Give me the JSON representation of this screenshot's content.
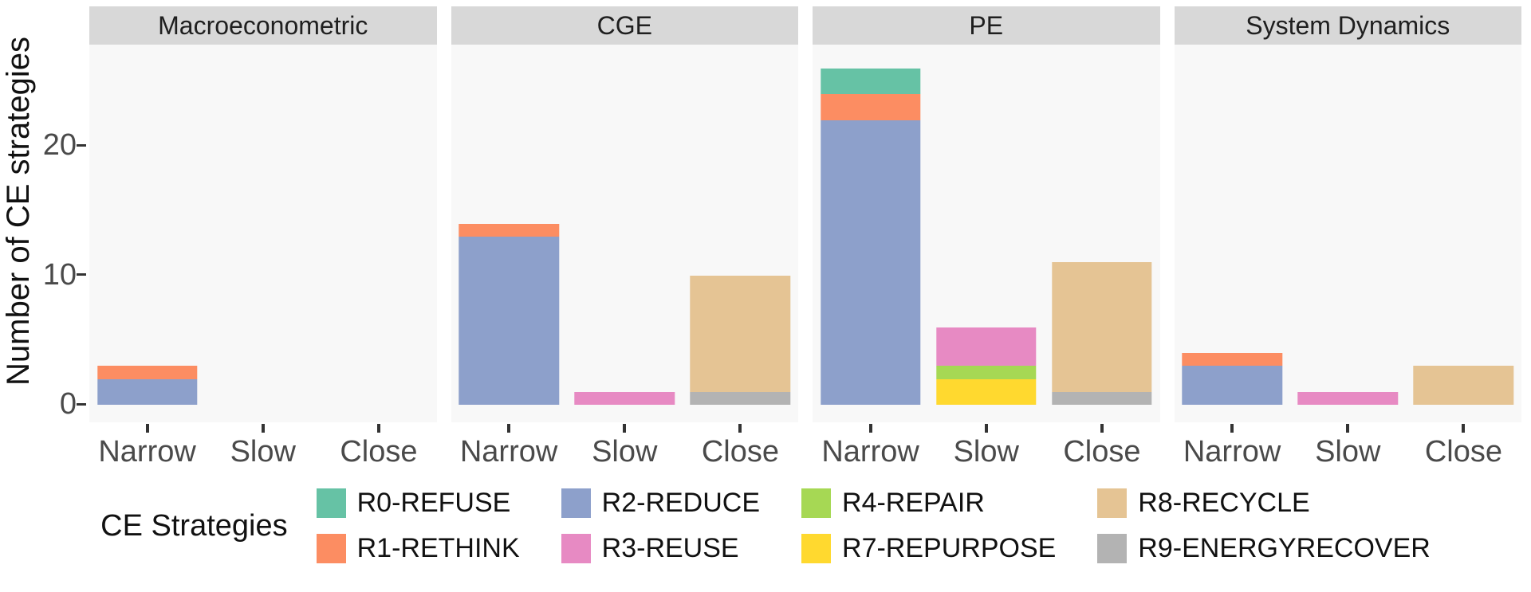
{
  "chart_data": {
    "type": "bar",
    "stacked": true,
    "title": "",
    "ylabel": "Number of CE strategies",
    "xlabel": "",
    "ylim": [
      0,
      27.5
    ],
    "yticks": [
      0,
      10,
      20
    ],
    "grid": false,
    "legend_position": "bottom",
    "categories": [
      "Narrow",
      "Slow",
      "Close"
    ],
    "facets": [
      {
        "label": "Macroeconometric",
        "bars": [
          {
            "category": "Narrow",
            "total": 3,
            "segments": [
              {
                "series": "R2-REDUCE",
                "value": 2
              },
              {
                "series": "R1-RETHINK",
                "value": 1
              }
            ]
          },
          {
            "category": "Slow",
            "total": 0,
            "segments": []
          },
          {
            "category": "Close",
            "total": 0,
            "segments": []
          }
        ]
      },
      {
        "label": "CGE",
        "bars": [
          {
            "category": "Narrow",
            "total": 14,
            "segments": [
              {
                "series": "R2-REDUCE",
                "value": 13
              },
              {
                "series": "R1-RETHINK",
                "value": 1
              }
            ]
          },
          {
            "category": "Slow",
            "total": 1,
            "segments": [
              {
                "series": "R3-REUSE",
                "value": 1
              }
            ]
          },
          {
            "category": "Close",
            "total": 10,
            "segments": [
              {
                "series": "R9-ENERGYRECOVER",
                "value": 1
              },
              {
                "series": "R8-RECYCLE",
                "value": 9
              }
            ]
          }
        ]
      },
      {
        "label": "PE",
        "bars": [
          {
            "category": "Narrow",
            "total": 26,
            "segments": [
              {
                "series": "R2-REDUCE",
                "value": 22
              },
              {
                "series": "R1-RETHINK",
                "value": 2
              },
              {
                "series": "R0-REFUSE",
                "value": 2
              }
            ]
          },
          {
            "category": "Slow",
            "total": 6,
            "segments": [
              {
                "series": "R7-REPURPOSE",
                "value": 2
              },
              {
                "series": "R4-REPAIR",
                "value": 1
              },
              {
                "series": "R3-REUSE",
                "value": 3
              }
            ]
          },
          {
            "category": "Close",
            "total": 11,
            "segments": [
              {
                "series": "R9-ENERGYRECOVER",
                "value": 1
              },
              {
                "series": "R8-RECYCLE",
                "value": 10
              }
            ]
          }
        ]
      },
      {
        "label": "System Dynamics",
        "bars": [
          {
            "category": "Narrow",
            "total": 4,
            "segments": [
              {
                "series": "R2-REDUCE",
                "value": 3
              },
              {
                "series": "R1-RETHINK",
                "value": 1
              }
            ]
          },
          {
            "category": "Slow",
            "total": 1,
            "segments": [
              {
                "series": "R3-REUSE",
                "value": 1
              }
            ]
          },
          {
            "category": "Close",
            "total": 3,
            "segments": [
              {
                "series": "R8-RECYCLE",
                "value": 3
              }
            ]
          }
        ]
      }
    ],
    "legend": {
      "title": "CE Strategies",
      "entries": [
        {
          "label": "R0-REFUSE",
          "color": "#66C2A5"
        },
        {
          "label": "R1-RETHINK",
          "color": "#FC8D62"
        },
        {
          "label": "R2-REDUCE",
          "color": "#8DA0CB"
        },
        {
          "label": "R3-REUSE",
          "color": "#E78AC3"
        },
        {
          "label": "R4-REPAIR",
          "color": "#A6D854"
        },
        {
          "label": "R7-REPURPOSE",
          "color": "#FFD92F"
        },
        {
          "label": "R8-RECYCLE",
          "color": "#E5C494"
        },
        {
          "label": "R9-ENERGYRECOVER",
          "color": "#B3B3B3"
        }
      ]
    },
    "style_colors": {
      "panel_background": "#f8f8f8",
      "strip_background": "#d8d8d8",
      "axis_text": "#4a4a4a",
      "tick_marks": "#333333"
    }
  }
}
